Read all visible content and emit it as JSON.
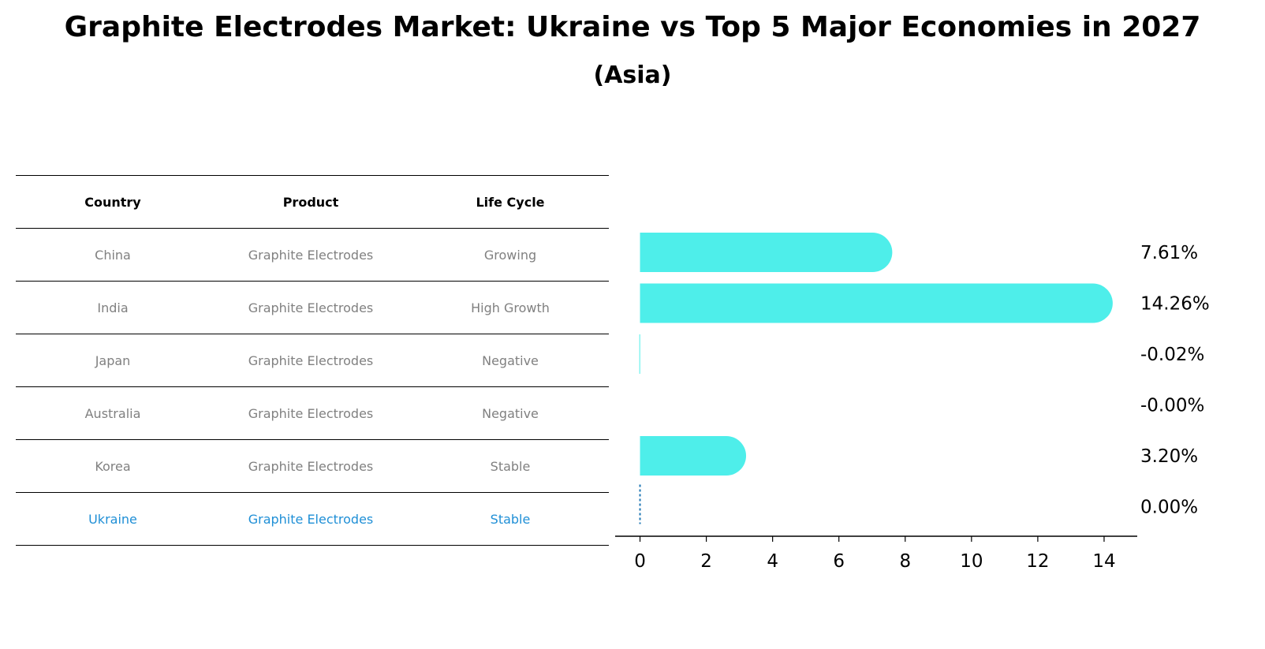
{
  "title": "Graphite Electrodes Market: Ukraine vs Top 5 Major Economies in 2027",
  "subtitle": "(Asia)",
  "table": {
    "headers": [
      "Country",
      "Product",
      "Life Cycle"
    ],
    "rows": [
      {
        "country": "China",
        "product": "Graphite Electrodes",
        "life_cycle": "Growing"
      },
      {
        "country": "India",
        "product": "Graphite Electrodes",
        "life_cycle": "High Growth"
      },
      {
        "country": "Japan",
        "product": "Graphite Electrodes",
        "life_cycle": "Negative"
      },
      {
        "country": "Australia",
        "product": "Graphite Electrodes",
        "life_cycle": "Negative"
      },
      {
        "country": "Korea",
        "product": "Graphite Electrodes",
        "life_cycle": "Stable"
      },
      {
        "country": "Ukraine",
        "product": "Graphite Electrodes",
        "life_cycle": "Stable"
      }
    ],
    "highlight_row": "Ukraine",
    "highlight_color": "#1f8fd6",
    "text_color": "#808080"
  },
  "chart_data": {
    "type": "bar",
    "orientation": "horizontal",
    "categories": [
      "China",
      "India",
      "Japan",
      "Australia",
      "Korea",
      "Ukraine"
    ],
    "values": [
      7.61,
      14.26,
      -0.02,
      -0.0,
      3.2,
      0.0
    ],
    "value_labels": [
      "7.61%",
      "14.26%",
      "-0.02%",
      "-0.00%",
      "3.20%",
      "0.00%"
    ],
    "xlim": [
      -0.75,
      15
    ],
    "xticks": [
      0,
      2,
      4,
      6,
      8,
      10,
      12,
      14
    ],
    "bar_color": "#4eeeea",
    "ukraine_line_color": "#1f77b4",
    "grid": false
  }
}
